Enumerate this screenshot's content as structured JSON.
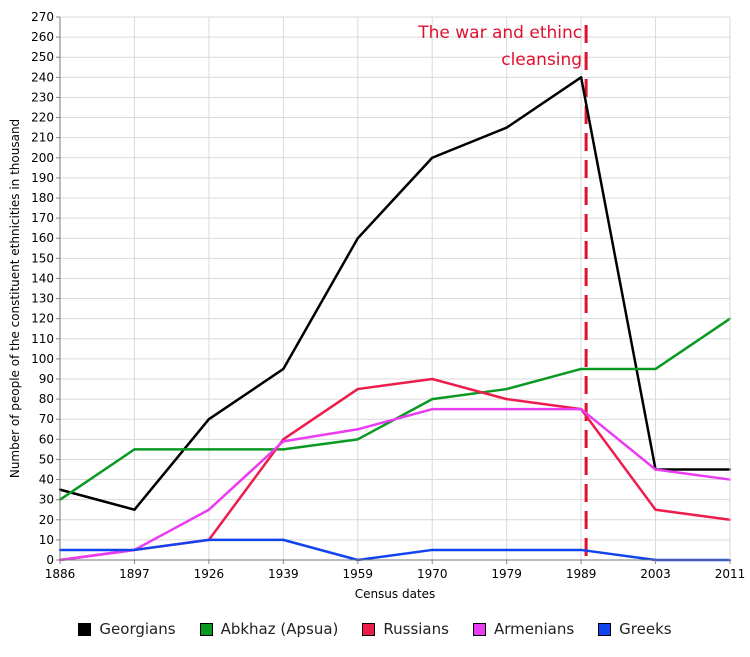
{
  "chart_data": {
    "type": "line",
    "title": "",
    "xlabel": "Census dates",
    "ylabel": "Number of people of the constituent ethnicities in thousand",
    "categories": [
      "1886",
      "1897",
      "1926",
      "1939",
      "1959",
      "1970",
      "1979",
      "1989",
      "2003",
      "2011"
    ],
    "x": [
      1886,
      1897,
      1926,
      1939,
      1959,
      1970,
      1979,
      1989,
      2003,
      2011
    ],
    "ylim": [
      0,
      270
    ],
    "yticks": [
      0,
      10,
      20,
      30,
      40,
      50,
      60,
      70,
      80,
      90,
      100,
      110,
      120,
      130,
      140,
      150,
      160,
      170,
      180,
      190,
      200,
      210,
      220,
      230,
      240,
      250,
      260,
      270
    ],
    "grid": true,
    "legend_position": "bottom",
    "series": [
      {
        "name": "Georgians",
        "color": "#000000",
        "values": [
          35,
          25,
          70,
          95,
          160,
          200,
          215,
          240,
          45,
          45
        ]
      },
      {
        "name": "Abkhaz (Apsua)",
        "color": "#0a9a22",
        "values": [
          30,
          55,
          55,
          55,
          60,
          80,
          85,
          95,
          95,
          120
        ]
      },
      {
        "name": "Russians",
        "color": "#ee1c4b",
        "values": [
          0,
          5,
          10,
          60,
          85,
          90,
          80,
          75,
          25,
          20
        ]
      },
      {
        "name": "Armenians",
        "color": "#ea3cf2",
        "values": [
          0,
          5,
          25,
          59,
          65,
          75,
          75,
          75,
          45,
          40
        ]
      },
      {
        "name": "Greeks",
        "color": "#1144ee",
        "values": [
          5,
          5,
          10,
          10,
          0,
          5,
          5,
          5,
          0,
          0
        ]
      }
    ],
    "annotations": [
      {
        "text_lines": [
          "The war and ethinc",
          "cleansing"
        ],
        "at_category": "1989",
        "style": "dashed-vertical-line",
        "color": "#e0102f"
      }
    ]
  }
}
